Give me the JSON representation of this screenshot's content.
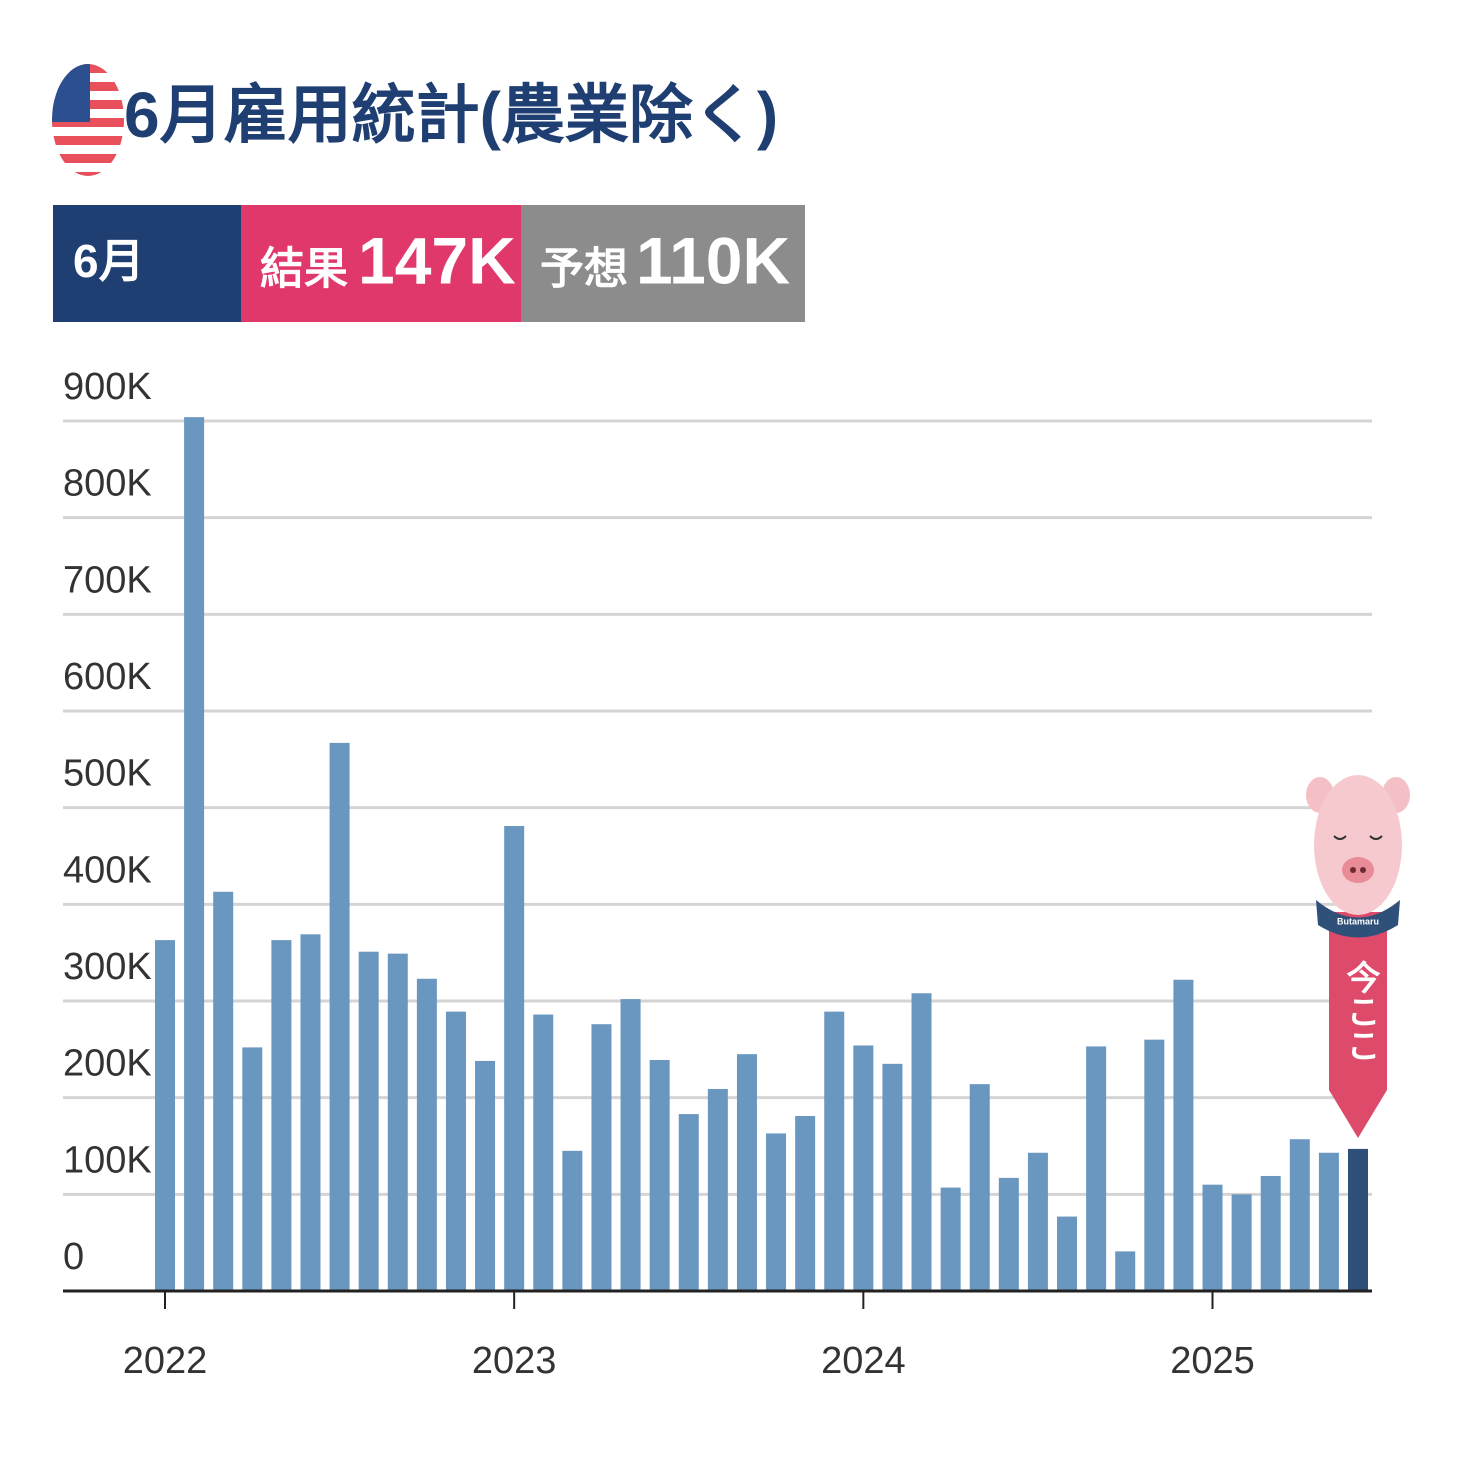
{
  "header": {
    "title": "6月雇用統計(農業除く)",
    "month": "6月",
    "result_label": "結果",
    "result_value": "147K",
    "forecast_label": "予想",
    "forecast_value": "110K"
  },
  "chart_data": {
    "type": "bar",
    "categories": [
      "2022",
      null,
      null,
      null,
      null,
      null,
      null,
      null,
      null,
      null,
      null,
      null,
      "2023",
      null,
      null,
      null,
      null,
      null,
      null,
      null,
      null,
      null,
      null,
      null,
      "2024",
      null,
      null,
      null,
      null,
      null,
      null,
      null,
      null,
      null,
      null,
      null,
      "2025",
      null,
      null,
      null,
      null,
      null
    ],
    "values": [
      363,
      904,
      413,
      252,
      363,
      369,
      567,
      351,
      349,
      323,
      289,
      238,
      481,
      286,
      145,
      276,
      302,
      239,
      183,
      209,
      245,
      163,
      181,
      289,
      254,
      235,
      308,
      107,
      214,
      117,
      143,
      77,
      253,
      41,
      260,
      322,
      110,
      100,
      119,
      157,
      143,
      147
    ],
    "color": "#6a97bf",
    "highlight": {
      "index": 41,
      "color": "#2f5078"
    },
    "ylim": [
      0,
      900
    ],
    "yticks": [
      {
        "value": 0,
        "label": "0"
      },
      {
        "value": 100,
        "label": "100K"
      },
      {
        "value": 200,
        "label": "200K"
      },
      {
        "value": 300,
        "label": "300K"
      },
      {
        "value": 400,
        "label": "400K"
      },
      {
        "value": 500,
        "label": "500K"
      },
      {
        "value": 600,
        "label": "600K"
      },
      {
        "value": 700,
        "label": "700K"
      },
      {
        "value": 800,
        "label": "800K"
      },
      {
        "value": 900,
        "label": "900K"
      }
    ],
    "grid": true,
    "annotation": "今ここ",
    "mascot_label": "Butamaru"
  }
}
